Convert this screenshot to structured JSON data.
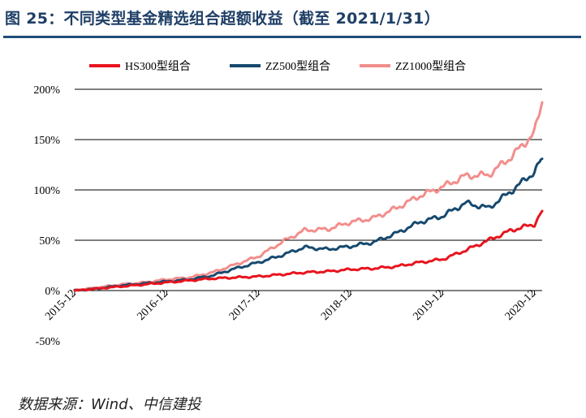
{
  "header": {
    "title": "图 25：不同类型基金精选组合超额收益（截至 2021/1/31）"
  },
  "source": "数据来源：Wind、中信建投",
  "chart_data": {
    "type": "line",
    "title": "图 25：不同类型基金精选组合超额收益（截至 2021/1/31）",
    "xlabel": "",
    "ylabel": "",
    "x": [
      "2015-12",
      "2016-03",
      "2016-06",
      "2016-09",
      "2016-12",
      "2017-03",
      "2017-06",
      "2017-09",
      "2017-12",
      "2018-03",
      "2018-06",
      "2018-09",
      "2018-12",
      "2019-03",
      "2019-06",
      "2019-09",
      "2019-12",
      "2020-03",
      "2020-06",
      "2020-09",
      "2020-12",
      "2021-01"
    ],
    "x_ticks": [
      "2015-12",
      "2016-12",
      "2017-12",
      "2018-12",
      "2019-12",
      "2020-12"
    ],
    "y_ticks": [
      "200%",
      "150%",
      "100%",
      "50%",
      "0%",
      "-50%"
    ],
    "ylim": [
      -50,
      200
    ],
    "grid": "horizontal",
    "legend_position": "top",
    "series": [
      {
        "name": "HS300型组合",
        "color": "#e8141e",
        "values": [
          0,
          2,
          4,
          6,
          8,
          10,
          12,
          13,
          14,
          16,
          18,
          19,
          21,
          22,
          24,
          28,
          31,
          40,
          50,
          60,
          66,
          79
        ]
      },
      {
        "name": "ZZ500型组合",
        "color": "#17496f",
        "values": [
          0,
          2,
          5,
          7,
          9,
          11,
          15,
          22,
          28,
          35,
          43,
          41,
          44,
          48,
          57,
          68,
          74,
          87,
          82,
          99,
          118,
          131
        ]
      },
      {
        "name": "ZZ1000型组合",
        "color": "#f28e8c",
        "values": [
          0,
          3,
          6,
          8,
          11,
          13,
          18,
          26,
          34,
          48,
          60,
          61,
          68,
          72,
          82,
          94,
          103,
          114,
          115,
          133,
          157,
          187
        ]
      }
    ]
  }
}
